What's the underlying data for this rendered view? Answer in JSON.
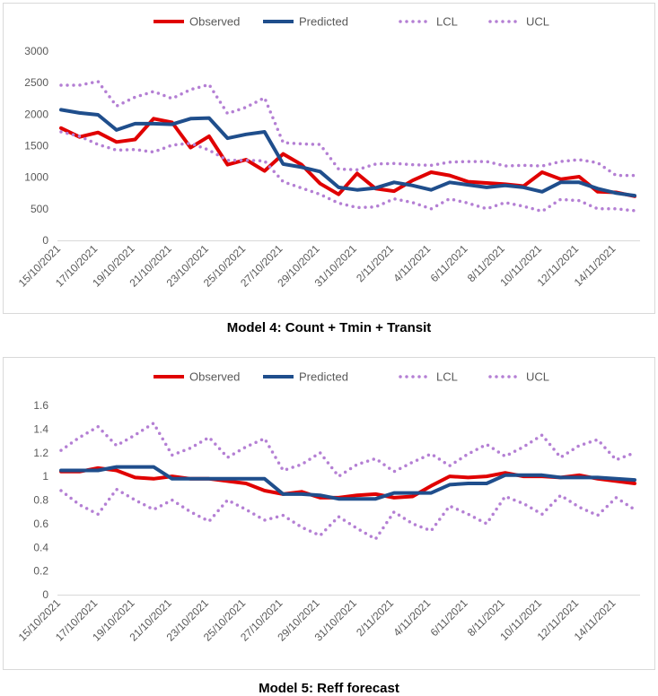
{
  "chart_data": [
    {
      "type": "line",
      "title": "Model 4: Count + Tmin + Transit",
      "xlabel": "",
      "ylabel": "",
      "ylim": [
        0,
        3000
      ],
      "yticks": [
        "0",
        "500",
        "1000",
        "1500",
        "2000",
        "2500",
        "3000"
      ],
      "x_tick_labels": [
        "15/10/2021",
        "17/10/2021",
        "19/10/2021",
        "21/10/2021",
        "23/10/2021",
        "25/10/2021",
        "27/10/2021",
        "29/10/2021",
        "31/10/2021",
        "2/11/2021",
        "4/11/2021",
        "6/11/2021",
        "8/11/2021",
        "10/11/2021",
        "12/11/2021",
        "14/11/2021"
      ],
      "legend": [
        "Observed",
        "Predicted",
        "LCL",
        "UCL"
      ],
      "legend_position": "top",
      "series": [
        {
          "name": "Observed",
          "color": "#e00000",
          "style": "solid",
          "values": [
            1780,
            1640,
            1710,
            1560,
            1600,
            1930,
            1870,
            1470,
            1650,
            1200,
            1280,
            1100,
            1370,
            1200,
            900,
            730,
            1060,
            820,
            780,
            950,
            1080,
            1030,
            930,
            910,
            890,
            860,
            1080,
            970,
            1010,
            770,
            760,
            700
          ]
        },
        {
          "name": "Predicted",
          "color": "#1f4e8c",
          "style": "solid",
          "values": [
            2070,
            2020,
            1990,
            1750,
            1850,
            1850,
            1840,
            1930,
            1940,
            1620,
            1680,
            1720,
            1210,
            1160,
            1090,
            840,
            800,
            830,
            920,
            870,
            800,
            920,
            880,
            840,
            870,
            840,
            770,
            920,
            920,
            820,
            750,
            710
          ]
        },
        {
          "name": "LCL",
          "color": "#b47fd4",
          "style": "dotted",
          "values": [
            1720,
            1650,
            1520,
            1430,
            1440,
            1400,
            1510,
            1540,
            1430,
            1270,
            1270,
            1260,
            930,
            830,
            730,
            590,
            520,
            530,
            660,
            600,
            500,
            660,
            590,
            500,
            600,
            540,
            460,
            650,
            630,
            500,
            500,
            470
          ]
        },
        {
          "name": "UCL",
          "color": "#b47fd4",
          "style": "dotted",
          "values": [
            2460,
            2460,
            2520,
            2130,
            2270,
            2360,
            2250,
            2390,
            2470,
            2010,
            2110,
            2260,
            1550,
            1530,
            1520,
            1130,
            1120,
            1210,
            1220,
            1200,
            1190,
            1240,
            1250,
            1250,
            1180,
            1190,
            1180,
            1250,
            1280,
            1230,
            1030,
            1030
          ]
        }
      ]
    },
    {
      "type": "line",
      "title": "Model 5: Reff forecast",
      "xlabel": "",
      "ylabel": "",
      "ylim": [
        0,
        1.6
      ],
      "yticks": [
        "0",
        "0.2",
        "0.4",
        "0.6",
        "0.8",
        "1",
        "1.2",
        "1.4",
        "1.6"
      ],
      "x_tick_labels": [
        "15/10/2021",
        "17/10/2021",
        "19/10/2021",
        "21/10/2021",
        "23/10/2021",
        "25/10/2021",
        "27/10/2021",
        "29/10/2021",
        "31/10/2021",
        "2/11/2021",
        "4/11/2021",
        "6/11/2021",
        "8/11/2021",
        "10/11/2021",
        "12/11/2021",
        "14/11/2021"
      ],
      "legend": [
        "Observed",
        "Predicted",
        "LCL",
        "UCL"
      ],
      "legend_position": "top",
      "series": [
        {
          "name": "Observed",
          "color": "#e00000",
          "style": "solid",
          "values": [
            1.04,
            1.04,
            1.07,
            1.05,
            0.99,
            0.98,
            1.0,
            0.98,
            0.98,
            0.96,
            0.94,
            0.88,
            0.85,
            0.87,
            0.82,
            0.82,
            0.84,
            0.85,
            0.82,
            0.83,
            0.92,
            1.0,
            0.99,
            1.0,
            1.03,
            1.0,
            1.0,
            0.99,
            1.01,
            0.98,
            0.96,
            0.94
          ]
        },
        {
          "name": "Predicted",
          "color": "#1f4e8c",
          "style": "solid",
          "values": [
            1.05,
            1.05,
            1.05,
            1.08,
            1.08,
            1.08,
            0.98,
            0.98,
            0.98,
            0.98,
            0.98,
            0.98,
            0.85,
            0.85,
            0.84,
            0.81,
            0.81,
            0.81,
            0.86,
            0.86,
            0.86,
            0.93,
            0.94,
            0.94,
            1.01,
            1.01,
            1.01,
            0.99,
            0.99,
            0.99,
            0.98,
            0.97
          ]
        },
        {
          "name": "LCL",
          "color": "#b47fd4",
          "style": "dotted",
          "values": [
            0.88,
            0.76,
            0.68,
            0.89,
            0.8,
            0.72,
            0.8,
            0.7,
            0.62,
            0.8,
            0.72,
            0.63,
            0.67,
            0.57,
            0.5,
            0.66,
            0.56,
            0.47,
            0.7,
            0.6,
            0.54,
            0.75,
            0.68,
            0.6,
            0.83,
            0.77,
            0.68,
            0.84,
            0.74,
            0.67,
            0.82,
            0.72
          ]
        },
        {
          "name": "UCL",
          "color": "#b47fd4",
          "style": "dotted",
          "values": [
            1.22,
            1.33,
            1.42,
            1.26,
            1.35,
            1.45,
            1.18,
            1.24,
            1.33,
            1.16,
            1.25,
            1.32,
            1.05,
            1.1,
            1.2,
            1.0,
            1.1,
            1.15,
            1.04,
            1.12,
            1.19,
            1.09,
            1.19,
            1.27,
            1.17,
            1.25,
            1.35,
            1.16,
            1.26,
            1.31,
            1.14,
            1.2
          ]
        }
      ]
    }
  ]
}
